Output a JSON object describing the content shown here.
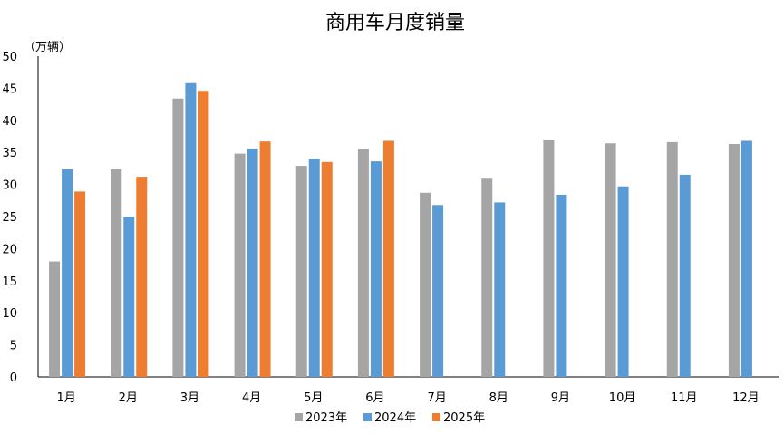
{
  "chart_data": {
    "type": "bar",
    "title": "商用车月度销量",
    "unit_label": "（万辆）",
    "xlabel": "",
    "ylabel": "",
    "ylim": [
      0,
      50
    ],
    "yticks": [
      "0",
      "5",
      "10",
      "15",
      "20",
      "25",
      "30",
      "35",
      "40",
      "45",
      "50"
    ],
    "yticks_values": [
      0,
      5,
      10,
      15,
      20,
      25,
      30,
      35,
      40,
      45,
      50
    ],
    "grid": false,
    "legend_position": "bottom",
    "categories": [
      "1月",
      "2月",
      "3月",
      "4月",
      "5月",
      "6月",
      "7月",
      "8月",
      "9月",
      "10月",
      "11月",
      "12月"
    ],
    "series": [
      {
        "name": "2023年",
        "color": "#A5A5A5",
        "values": [
          18.0,
          32.4,
          43.4,
          34.8,
          32.9,
          35.5,
          28.7,
          30.9,
          37.0,
          36.4,
          36.6,
          36.3
        ]
      },
      {
        "name": "2024年",
        "color": "#5B9BD5",
        "values": [
          32.4,
          25.0,
          45.8,
          35.6,
          34.0,
          33.6,
          26.8,
          27.2,
          28.4,
          29.7,
          31.5,
          36.8
        ]
      },
      {
        "name": "2025年",
        "color": "#ED7D31",
        "values": [
          28.9,
          31.2,
          44.6,
          36.7,
          33.5,
          36.8,
          null,
          null,
          null,
          null,
          null,
          null
        ]
      }
    ]
  }
}
